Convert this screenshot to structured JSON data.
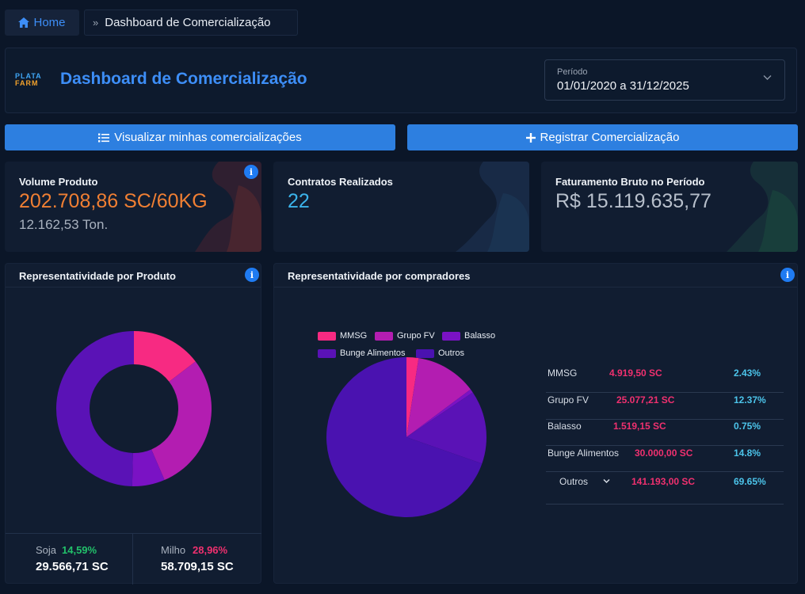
{
  "breadcrumb": {
    "home": "Home",
    "separator": "»",
    "current": "Dashboard de Comercialização"
  },
  "header": {
    "logo_top": "PLATA",
    "logo_bottom": "FARM",
    "title": "Dashboard de Comercialização",
    "period": {
      "label": "Período",
      "value": "01/01/2020 a 31/12/2025"
    }
  },
  "actions": {
    "list": "Visualizar minhas comercializações",
    "add": "Registrar Comercialização"
  },
  "stats": {
    "volume": {
      "title": "Volume Produto",
      "value": "202.708,86 SC/60KG",
      "sub": "12.162,53 Ton.",
      "info": "i"
    },
    "contracts": {
      "title": "Contratos Realizados",
      "value": "22"
    },
    "revenue": {
      "title": "Faturamento Bruto no Período",
      "value": "R$ 15.119.635,77"
    }
  },
  "product_panel": {
    "title": "Representatividade por Produto",
    "info": "i",
    "items": [
      {
        "name": "Soja",
        "pct": "14,59%",
        "value": "29.566,71 SC"
      },
      {
        "name": "Milho",
        "pct": "28,96%",
        "value": "58.709,15 SC"
      }
    ]
  },
  "buyers_panel": {
    "title": "Representatividade por compradores",
    "info": "i",
    "rows": [
      {
        "name": "MMSG",
        "value": "4.919,50 SC",
        "pct": "2.43%"
      },
      {
        "name": "Grupo FV",
        "value": "25.077,21 SC",
        "pct": "12.37%"
      },
      {
        "name": "Balasso",
        "value": "1.519,15 SC",
        "pct": "0.75%"
      },
      {
        "name": "Bunge Alimentos",
        "value": "30.000,00 SC",
        "pct": "14.8%"
      },
      {
        "name": "Outros",
        "value": "141.193,00 SC",
        "pct": "69.65%"
      }
    ]
  },
  "colors": {
    "accent": "#3d8ef7",
    "button": "#2d7fe0",
    "orange": "#f07f33",
    "cyan": "#3bb3ea",
    "green": "#22c06a",
    "red": "#f0306f",
    "pink": "#f72a82",
    "magenta": "#b31db1",
    "violet": "#7a12c4",
    "indigo": "#5a12b6",
    "deep": "#4a12b0"
  },
  "chart_data": [
    {
      "type": "pie",
      "variant": "donut",
      "title": "Representatividade por Produto",
      "labels": [
        "Soja",
        "Milho",
        "",
        ""
      ],
      "values": [
        14.59,
        28.96,
        6.8,
        49.65
      ],
      "colors": [
        "#f72a82",
        "#b31db1",
        "#7a12c4",
        "#5a12b6"
      ]
    },
    {
      "type": "pie",
      "title": "Representatividade por compradores",
      "labels": [
        "MMSG",
        "Grupo FV",
        "Balasso",
        "Bunge Alimentos",
        "Outros"
      ],
      "values": [
        2.43,
        12.37,
        0.75,
        14.8,
        69.65
      ],
      "colors": [
        "#f72a82",
        "#b31db1",
        "#7a12c4",
        "#5a12b6",
        "#4a12b0"
      ],
      "legend": "top"
    }
  ]
}
